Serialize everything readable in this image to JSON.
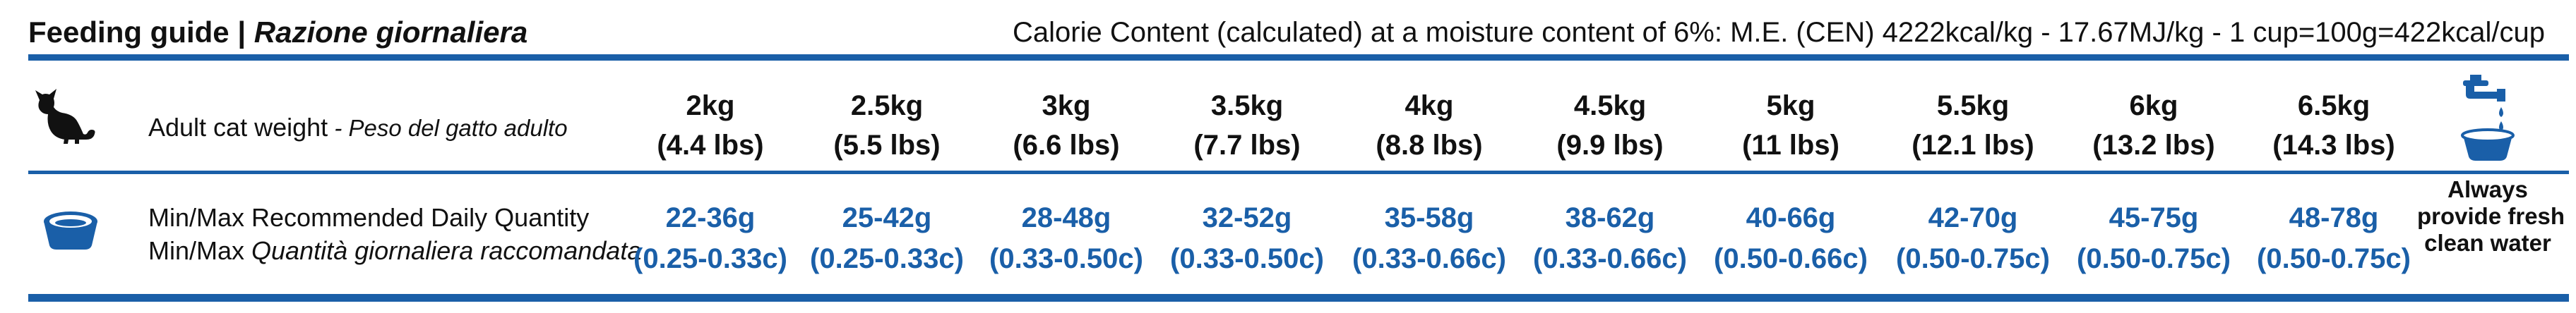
{
  "header": {
    "title_en": "Feeding guide",
    "separator": " | ",
    "title_it": "Razione giornaliera",
    "calorie_text": "Calorie Content (calculated) at a moisture content of 6%: M.E. (CEN) 4222kcal/kg - 17.67MJ/kg - 1 cup=100g=422kcal/cup"
  },
  "rows": {
    "weight_label_en": "Adult cat weight",
    "weight_label_sep": " - ",
    "weight_label_it": "Peso del gatto adulto",
    "qty_label_en": "Min/Max Recommended Daily Quantity",
    "qty_label_it_prefix": "Min/Max ",
    "qty_label_it": "Quantità giornaliera raccomandata"
  },
  "columns": [
    {
      "kg": "2kg",
      "lbs": "(4.4 lbs)",
      "grams": "22-36g",
      "cups": "(0.25-0.33c)"
    },
    {
      "kg": "2.5kg",
      "lbs": "(5.5 lbs)",
      "grams": "25-42g",
      "cups": "(0.25-0.33c)"
    },
    {
      "kg": "3kg",
      "lbs": "(6.6 lbs)",
      "grams": "28-48g",
      "cups": "(0.33-0.50c)"
    },
    {
      "kg": "3.5kg",
      "lbs": "(7.7 lbs)",
      "grams": "32-52g",
      "cups": "(0.33-0.50c)"
    },
    {
      "kg": "4kg",
      "lbs": "(8.8 lbs)",
      "grams": "35-58g",
      "cups": "(0.33-0.66c)"
    },
    {
      "kg": "4.5kg",
      "lbs": "(9.9 lbs)",
      "grams": "38-62g",
      "cups": "(0.33-0.66c)"
    },
    {
      "kg": "5kg",
      "lbs": "(11 lbs)",
      "grams": "40-66g",
      "cups": "(0.50-0.66c)"
    },
    {
      "kg": "5.5kg",
      "lbs": "(12.1 lbs)",
      "grams": "42-70g",
      "cups": "(0.50-0.75c)"
    },
    {
      "kg": "6kg",
      "lbs": "(13.2 lbs)",
      "grams": "45-75g",
      "cups": "(0.50-0.75c)"
    },
    {
      "kg": "6.5kg",
      "lbs": "(14.3 lbs)",
      "grams": "48-78g",
      "cups": "(0.50-0.75c)"
    }
  ],
  "water": {
    "line1": "Always",
    "line2": "provide fresh",
    "line3": "clean water"
  },
  "icons": {
    "cat": "cat-silhouette-icon",
    "bowl": "food-bowl-icon",
    "water": "water-tap-bowl-icon"
  },
  "colors": {
    "accent": "#1a5fa8",
    "text": "#111111"
  }
}
